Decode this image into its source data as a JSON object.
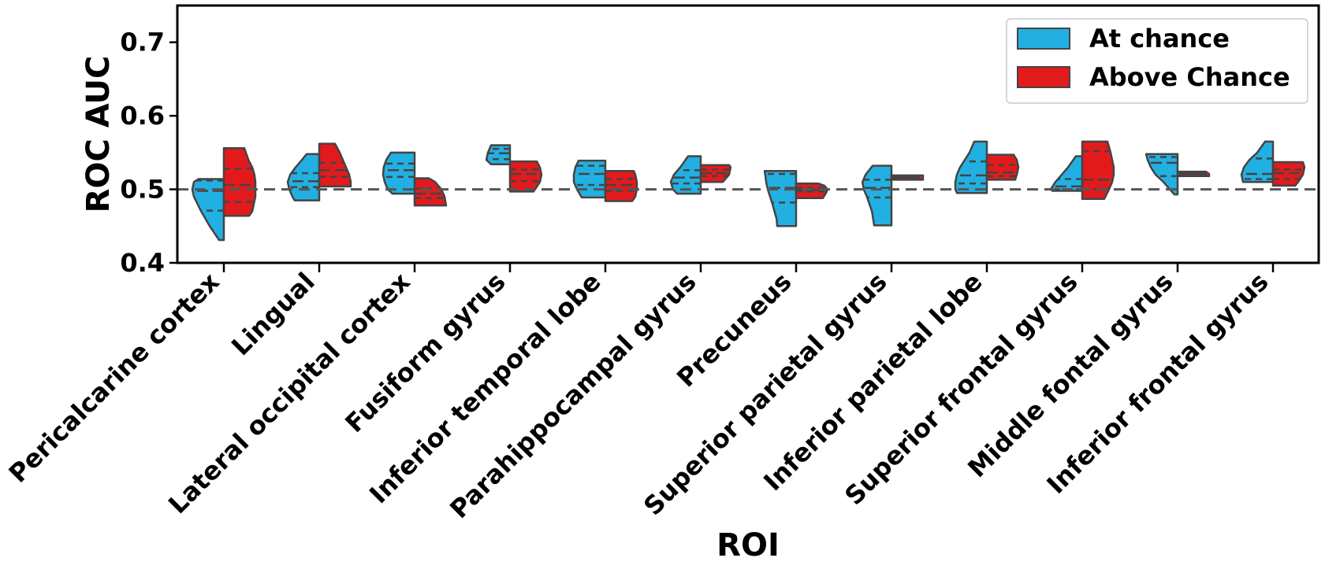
{
  "chart_data": {
    "type": "violin",
    "split": true,
    "xlabel": "ROI",
    "ylabel": "ROC AUC",
    "ylim": [
      0.4,
      0.75
    ],
    "yticks": [
      0.4,
      0.5,
      0.6,
      0.7
    ],
    "reference_line": 0.5,
    "legend": {
      "position": "top-right",
      "entries": [
        "At chance",
        "Above Chance"
      ]
    },
    "categories": [
      "Pericalcarine cortex",
      "Lingual",
      "Lateral occipital cortex",
      "Fusiform gyrus",
      "Inferior temporal lobe",
      "Parahippocampal gyrus",
      "Precuneus",
      "Superior parietal gyrus",
      "Inferior parietal lobe",
      "Superior frontal gyrus",
      "Middle fontal gyrus",
      "Inferior frontal gyrus"
    ],
    "series": [
      {
        "name": "At chance",
        "color": "#22b0e2",
        "distributions": [
          {
            "y": [
              0.431,
              0.45,
              0.47,
              0.49,
              0.5,
              0.51,
              0.514
            ],
            "w": [
              0.15,
              0.45,
              0.72,
              0.95,
              1.0,
              0.95,
              0.8
            ]
          },
          {
            "y": [
              0.485,
              0.49,
              0.5,
              0.51,
              0.52,
              0.53,
              0.54,
              0.548
            ],
            "w": [
              0.78,
              0.85,
              0.95,
              1.0,
              0.92,
              0.75,
              0.55,
              0.4
            ]
          },
          {
            "y": [
              0.494,
              0.5,
              0.51,
              0.52,
              0.53,
              0.54,
              0.55
            ],
            "w": [
              0.7,
              0.85,
              0.95,
              1.0,
              0.98,
              0.9,
              0.75
            ]
          },
          {
            "y": [
              0.534,
              0.54,
              0.55,
              0.56
            ],
            "w": [
              0.6,
              0.75,
              0.7,
              0.6
            ]
          },
          {
            "y": [
              0.489,
              0.5,
              0.51,
              0.52,
              0.53,
              0.539
            ],
            "w": [
              0.75,
              0.9,
              1.0,
              1.0,
              0.95,
              0.85
            ]
          },
          {
            "y": [
              0.494,
              0.5,
              0.51,
              0.52,
              0.53,
              0.545
            ],
            "w": [
              0.75,
              0.88,
              0.95,
              0.85,
              0.65,
              0.4
            ]
          },
          {
            "y": [
              0.45,
              0.46,
              0.48,
              0.5,
              0.51,
              0.52,
              0.525
            ],
            "w": [
              0.6,
              0.62,
              0.75,
              0.9,
              0.95,
              0.98,
              1.0
            ]
          },
          {
            "y": [
              0.451,
              0.47,
              0.49,
              0.5,
              0.51,
              0.52,
              0.532
            ],
            "w": [
              0.55,
              0.62,
              0.78,
              0.88,
              0.92,
              0.82,
              0.6
            ]
          },
          {
            "y": [
              0.495,
              0.5,
              0.51,
              0.52,
              0.53,
              0.54,
              0.55,
              0.565
            ],
            "w": [
              0.95,
              1.0,
              1.0,
              0.95,
              0.85,
              0.7,
              0.55,
              0.4
            ]
          },
          {
            "y": [
              0.498,
              0.5,
              0.51,
              0.52,
              0.53,
              0.545
            ],
            "w": [
              0.95,
              1.0,
              0.85,
              0.65,
              0.45,
              0.2
            ]
          },
          {
            "y": [
              0.493,
              0.5,
              0.51,
              0.52,
              0.53,
              0.54,
              0.548
            ],
            "w": [
              0.1,
              0.25,
              0.45,
              0.7,
              0.85,
              0.95,
              1.0
            ]
          },
          {
            "y": [
              0.51,
              0.52,
              0.53,
              0.54,
              0.55,
              0.565
            ],
            "w": [
              0.95,
              1.0,
              0.92,
              0.75,
              0.5,
              0.25
            ]
          }
        ],
        "quartiles": [
          [
            0.471,
            0.498,
            0.512
          ],
          [
            0.503,
            0.511,
            0.522
          ],
          [
            0.517,
            0.526,
            0.535
          ],
          [
            0.541,
            0.549,
            0.555
          ],
          [
            0.506,
            0.521,
            0.532
          ],
          [
            0.508,
            0.516,
            0.526
          ],
          [
            0.482,
            0.502,
            0.521
          ],
          [
            0.489,
            0.502,
            0.513
          ],
          [
            0.508,
            0.519,
            0.538
          ],
          [
            0.5,
            0.504,
            0.514
          ],
          [
            0.518,
            0.536,
            0.544
          ],
          [
            0.514,
            0.521,
            0.542
          ]
        ]
      },
      {
        "name": "Above Chance",
        "color": "#e31a1c",
        "distributions": [
          {
            "y": [
              0.464,
              0.47,
              0.48,
              0.49,
              0.5,
              0.51,
              0.52,
              0.53,
              0.54,
              0.556
            ],
            "w": [
              0.8,
              0.9,
              0.95,
              1.0,
              1.0,
              1.0,
              0.97,
              0.9,
              0.78,
              0.65
            ]
          },
          {
            "y": [
              0.504,
              0.51,
              0.52,
              0.53,
              0.54,
              0.55,
              0.562
            ],
            "w": [
              1.0,
              1.0,
              0.95,
              0.85,
              0.75,
              0.65,
              0.5
            ]
          },
          {
            "y": [
              0.478,
              0.49,
              0.5,
              0.51,
              0.515
            ],
            "w": [
              1.0,
              0.95,
              0.85,
              0.65,
              0.45
            ]
          },
          {
            "y": [
              0.497,
              0.51,
              0.52,
              0.53,
              0.538
            ],
            "w": [
              0.75,
              0.95,
              1.0,
              0.95,
              0.85
            ]
          },
          {
            "y": [
              0.484,
              0.49,
              0.5,
              0.51,
              0.52,
              0.525
            ],
            "w": [
              0.85,
              0.95,
              1.0,
              1.0,
              0.95,
              0.9
            ]
          },
          {
            "y": [
              0.51,
              0.52,
              0.53,
              0.533
            ],
            "w": [
              0.7,
              0.9,
              0.95,
              0.9
            ]
          },
          {
            "y": [
              0.488,
              0.495,
              0.5,
              0.505,
              0.508
            ],
            "w": [
              0.85,
              0.95,
              1.0,
              0.9,
              0.7
            ]
          },
          {
            "y": [
              0.513,
              0.516,
              0.519
            ],
            "w": [
              1.0,
              1.0,
              1.0
            ]
          },
          {
            "y": [
              0.513,
              0.52,
              0.53,
              0.54,
              0.547
            ],
            "w": [
              0.9,
              0.95,
              1.0,
              0.95,
              0.85
            ]
          },
          {
            "y": [
              0.487,
              0.5,
              0.51,
              0.52,
              0.53,
              0.54,
              0.55,
              0.565
            ],
            "w": [
              0.7,
              0.85,
              0.95,
              1.0,
              1.0,
              0.95,
              0.9,
              0.8
            ]
          },
          {
            "y": [
              0.518,
              0.521,
              0.524
            ],
            "w": [
              1.0,
              1.0,
              0.9
            ]
          },
          {
            "y": [
              0.505,
              0.51,
              0.52,
              0.53,
              0.537
            ],
            "w": [
              0.7,
              0.8,
              0.95,
              1.0,
              0.95
            ]
          }
        ],
        "quartiles": [
          [
            0.483,
            0.506,
            0.528
          ],
          [
            0.517,
            0.526,
            0.536
          ],
          [
            0.488,
            0.494,
            0.501
          ],
          [
            0.511,
            0.521,
            0.527
          ],
          [
            0.498,
            0.506,
            0.514
          ],
          [
            0.518,
            0.522,
            0.527
          ],
          [
            0.497,
            0.499,
            0.502
          ],
          [
            0.515,
            0.516,
            0.517
          ],
          [
            0.518,
            0.523,
            0.533
          ],
          [
            0.5,
            0.513,
            0.552
          ],
          [
            0.52,
            0.521,
            0.522
          ],
          [
            0.514,
            0.522,
            0.527
          ]
        ]
      }
    ]
  }
}
